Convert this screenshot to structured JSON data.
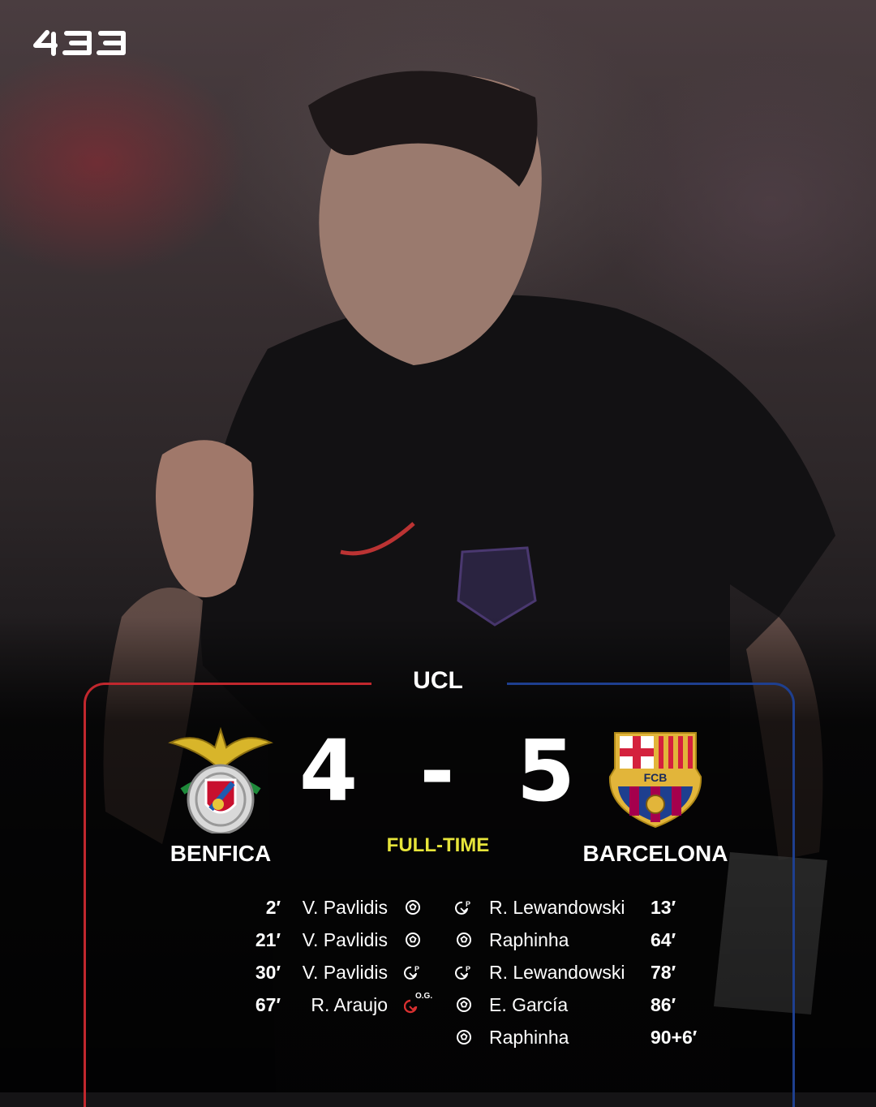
{
  "brand": {
    "logo_text": "433"
  },
  "match": {
    "competition": "UCL",
    "status": "FULL-TIME",
    "status_color": "#e6e43a",
    "home": {
      "name": "BENFICA",
      "score": "4",
      "color": "#c1272d"
    },
    "away": {
      "name": "BARCELONA",
      "score": "5",
      "color": "#1e3f8f"
    },
    "separator": "-",
    "crest_text": {
      "away": "FCB"
    }
  },
  "home_goals": [
    {
      "minute": "2′",
      "player": "V. Pavlidis",
      "icon": "ball-icon"
    },
    {
      "minute": "21′",
      "player": "V. Pavlidis",
      "icon": "ball-icon"
    },
    {
      "minute": "30′",
      "player": "V. Pavlidis",
      "icon": "penalty-icon"
    },
    {
      "minute": "67′",
      "player": "R. Araujo",
      "icon": "own-goal-icon",
      "badge": "O.G."
    }
  ],
  "away_goals": [
    {
      "minute": "13′",
      "player": "R. Lewandowski",
      "icon": "penalty-icon"
    },
    {
      "minute": "64′",
      "player": "Raphinha",
      "icon": "ball-icon"
    },
    {
      "minute": "78′",
      "player": "R. Lewandowski",
      "icon": "penalty-icon"
    },
    {
      "minute": "86′",
      "player": "E. García",
      "icon": "ball-icon"
    },
    {
      "minute": "90+6′",
      "player": "Raphinha",
      "icon": "ball-icon"
    }
  ]
}
